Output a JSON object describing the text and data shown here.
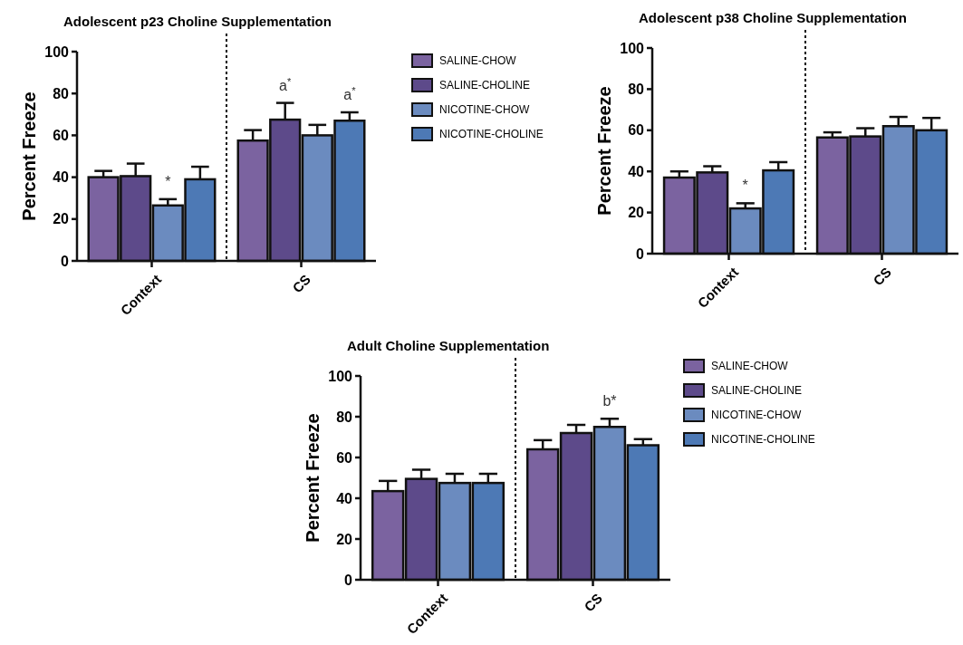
{
  "chart_data": [
    {
      "type": "bar",
      "title": "Adolescent  p23 Choline  Supplementation",
      "ylabel": "Percent Freeze",
      "categories": [
        "Context",
        "CS"
      ],
      "ylim": [
        0,
        100
      ],
      "yticks": [
        0,
        20,
        40,
        60,
        80,
        100
      ],
      "legend": "right",
      "series": [
        {
          "name": "SALINE-CHOW",
          "color": "#7b63a0",
          "values": [
            40,
            57.5
          ],
          "errors": [
            [
              40,
              43
            ],
            [
              57.5,
              62.5
            ]
          ]
        },
        {
          "name": "SALINE-CHOLINE",
          "color": "#5d4a8a",
          "values": [
            40.5,
            67.5
          ],
          "errors": [
            [
              40.5,
              46.5
            ],
            [
              67.5,
              75.5
            ]
          ]
        },
        {
          "name": "NICOTINE-CHOW",
          "color": "#6b8bbf",
          "values": [
            26.5,
            60
          ],
          "errors": [
            [
              26.5,
              29.5
            ],
            [
              60,
              65
            ]
          ]
        },
        {
          "name": "NICOTINE-CHOLINE",
          "color": "#4d79b5",
          "values": [
            39,
            67
          ],
          "errors": [
            [
              39,
              45
            ],
            [
              67,
              71
            ]
          ]
        }
      ],
      "annotations": [
        {
          "text": "*",
          "x": "Context",
          "y": 29.5
        },
        "a$^{*}$",
        "a$^{*}$"
      ]
    },
    {
      "type": "bar",
      "title": "Adolescent  p38 Choline  Supplementation",
      "ylabel": "Percent Freeze",
      "categories": [
        "Context",
        "CS"
      ],
      "ylim": [
        0,
        100
      ],
      "yticks": [
        0,
        20,
        40,
        60,
        80,
        100
      ],
      "series": [
        {
          "color": "#7b63a0",
          "values": [
            37,
            56.5
          ],
          "errors": [
            [
              37,
              40
            ],
            [
              56.5,
              59
            ]
          ]
        },
        {
          "color": "#5d4a8a",
          "values": [
            39.5,
            57
          ],
          "errors": [
            [
              39.5,
              42.5
            ],
            [
              57,
              61
            ]
          ]
        },
        {
          "color": "#6b8bbf",
          "values": [
            22,
            62
          ],
          "errors": [
            [
              22,
              24.5
            ],
            [
              62,
              66.5
            ]
          ]
        },
        {
          "color": "#4d79b5",
          "values": [
            40.5,
            60
          ],
          "errors": [
            [
              40.5,
              44.5
            ],
            [
              60,
              66
            ]
          ]
        }
      ],
      "annotations": [
        {
          "text": "*",
          "x": "Context",
          "y": 24.5
        }
      ]
    },
    {
      "type": "bar",
      "title": "Adult  Choline  Supplementation",
      "ylabel": "Percent Freeze",
      "categories": [
        "Context",
        "CS"
      ],
      "ylim": [
        0,
        100
      ],
      "yticks": [
        0,
        20,
        40,
        60,
        80,
        100
      ],
      "legend": "right",
      "series": [
        {
          "name": "SALINE-CHOW",
          "color": "#7b63a0",
          "values": [
            43.5,
            64
          ],
          "errors": [
            [
              43.5,
              48.5
            ],
            [
              64,
              68.5
            ]
          ]
        },
        {
          "name": "SALINE-CHOLINE",
          "color": "#5d4a8a",
          "values": [
            49.5,
            72
          ],
          "errors": [
            [
              49.5,
              54
            ],
            [
              72,
              76
            ]
          ]
        },
        {
          "name": "NICOTINE-CHOW",
          "color": "#6b8bbf",
          "values": [
            47.5,
            75
          ],
          "errors": [
            [
              47.5,
              52
            ],
            [
              75,
              79
            ]
          ]
        },
        {
          "name": "NICOTINE-CHOLINE",
          "color": "#4d79b5",
          "values": [
            47.5,
            66
          ],
          "errors": [
            [
              47.5,
              52
            ],
            [
              66,
              69
            ]
          ]
        }
      ],
      "annotations": [
        "b*"
      ]
    }
  ]
}
